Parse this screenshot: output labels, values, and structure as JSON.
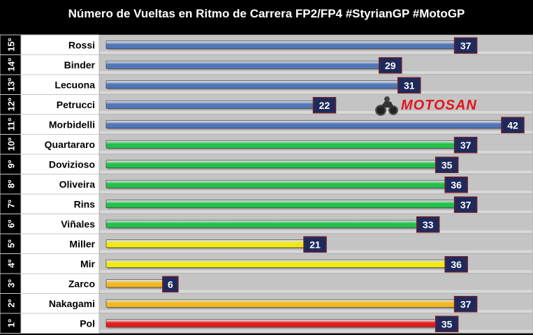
{
  "chart_data": {
    "type": "bar",
    "orientation": "horizontal",
    "title": "Número de Vueltas en Ritmo de Carrera FP2/FP4 #StyrianGP #MotoGP",
    "xlim": [
      0,
      42
    ],
    "grid": false,
    "rows": [
      {
        "rank": "15º",
        "rider": "Rossi",
        "value": 37,
        "color": "#4f76b8"
      },
      {
        "rank": "14º",
        "rider": "Binder",
        "value": 29,
        "color": "#4f76b8"
      },
      {
        "rank": "13º",
        "rider": "Lecuona",
        "value": 31,
        "color": "#4f76b8"
      },
      {
        "rank": "12º",
        "rider": "Petrucci",
        "value": 22,
        "color": "#4f76b8"
      },
      {
        "rank": "11º",
        "rider": "Morbidelli",
        "value": 42,
        "color": "#4f76b8"
      },
      {
        "rank": "10º",
        "rider": "Quartararo",
        "value": 37,
        "color": "#22c04a"
      },
      {
        "rank": "9º",
        "rider": "Dovizioso",
        "value": 35,
        "color": "#22c04a"
      },
      {
        "rank": "8º",
        "rider": "Oliveira",
        "value": 36,
        "color": "#22c04a"
      },
      {
        "rank": "7º",
        "rider": "Rins",
        "value": 37,
        "color": "#22c04a"
      },
      {
        "rank": "6º",
        "rider": "Viñales",
        "value": 33,
        "color": "#22c04a"
      },
      {
        "rank": "5º",
        "rider": "Miller",
        "value": 21,
        "color": "#f2ea0c"
      },
      {
        "rank": "4º",
        "rider": "Mir",
        "value": 36,
        "color": "#f2ea0c"
      },
      {
        "rank": "3º",
        "rider": "Zarco",
        "value": 6,
        "color": "#f5b81c"
      },
      {
        "rank": "2º",
        "rider": "Nakagami",
        "value": 37,
        "color": "#f5b81c"
      },
      {
        "rank": "1º",
        "rider": "Pol",
        "value": 35,
        "color": "#e61b1b"
      }
    ]
  },
  "watermark": {
    "text": "MOTOSAN",
    "icon": "motorcycle-rider-icon",
    "color": "#e0141e"
  }
}
